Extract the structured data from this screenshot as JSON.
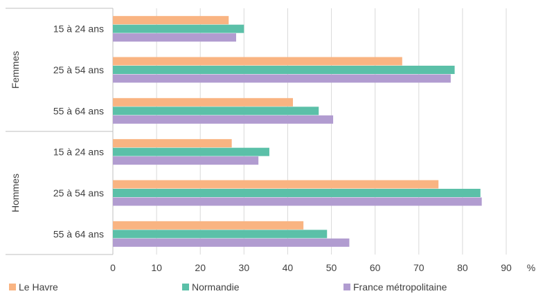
{
  "chart_data": {
    "type": "bar",
    "orientation": "horizontal",
    "groups": [
      {
        "label": "Femmes",
        "categories": [
          "15 à 24 ans",
          "25 à 54 ans",
          "55 à 64 ans"
        ]
      },
      {
        "label": "Hommes",
        "categories": [
          "15 à 24 ans",
          "25 à 54 ans",
          "55 à 64 ans"
        ]
      }
    ],
    "series": [
      {
        "name": "Le Havre",
        "color": "#F9B482",
        "values": [
          26.5,
          66.2,
          41.2,
          27.2,
          74.5,
          43.6
        ]
      },
      {
        "name": "Normandie",
        "color": "#5BC0A8",
        "values": [
          30.0,
          78.2,
          47.1,
          35.8,
          84.1,
          49.0
        ]
      },
      {
        "name": "France métropolitaine",
        "color": "#B19CD0",
        "values": [
          28.2,
          77.3,
          50.4,
          33.3,
          84.4,
          54.1
        ]
      }
    ],
    "xlim": [
      0,
      90
    ],
    "xticks": [
      "0",
      "10",
      "20",
      "30",
      "40",
      "50",
      "60",
      "70",
      "80",
      "90"
    ],
    "xunit": "%",
    "grid": true,
    "legend_position": "bottom"
  }
}
